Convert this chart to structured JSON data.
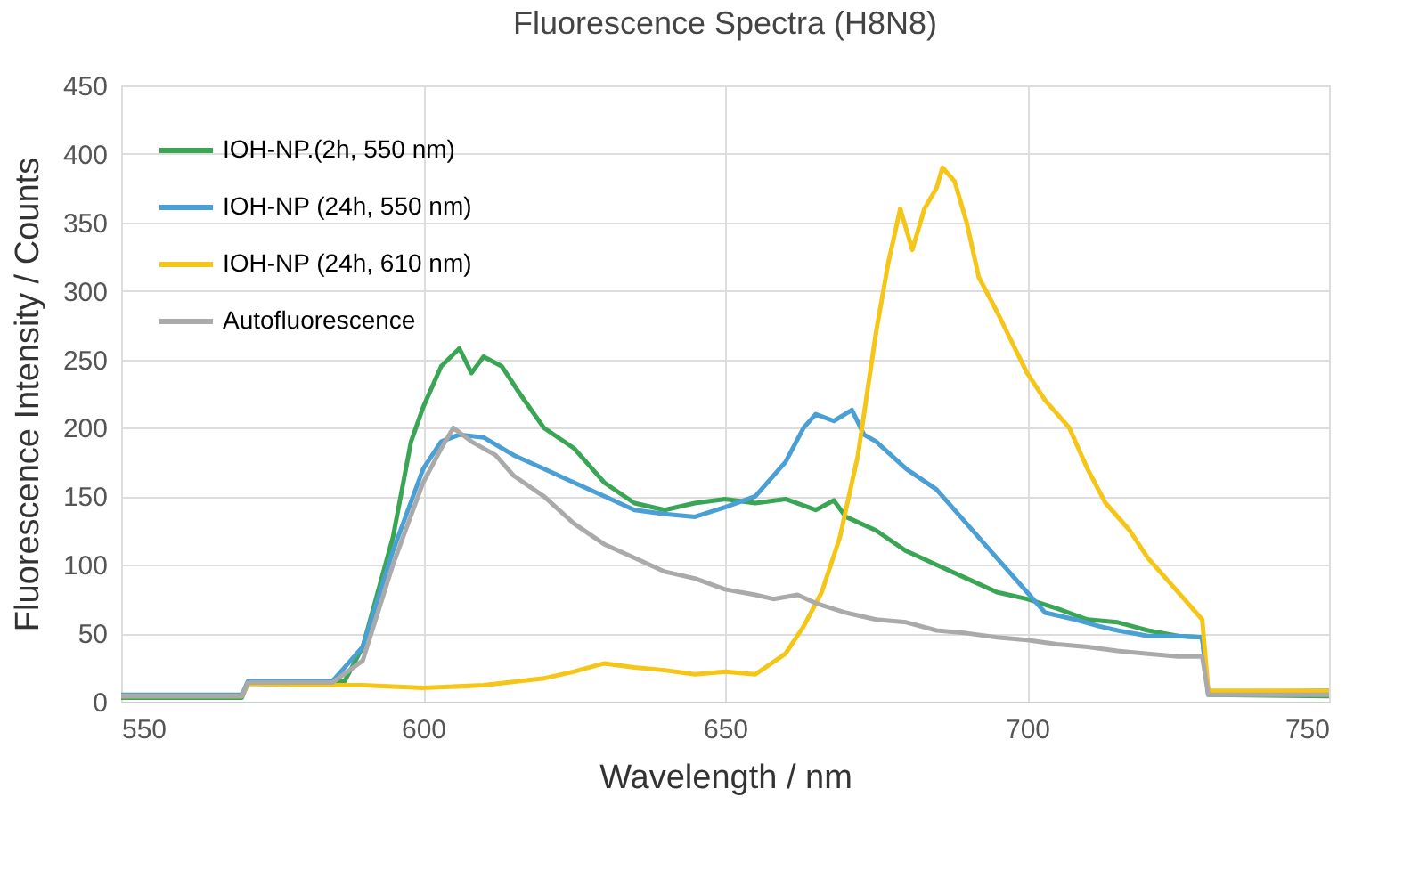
{
  "chart_data": {
    "type": "line",
    "title": "Fluorescence Spectra (H8N8)",
    "xlabel": "Wavelength / nm",
    "ylabel": "Fluorescence Intensity / Counts",
    "xlim": [
      550,
      750
    ],
    "xticks": [
      550,
      600,
      650,
      700,
      750
    ],
    "ylim": [
      0,
      450
    ],
    "yticks": [
      0,
      50,
      100,
      150,
      200,
      250,
      300,
      350,
      400,
      450
    ],
    "grid": true,
    "legend": "top left",
    "marker": "none",
    "line_style": "solid",
    "series": [
      {
        "name": "IOH-NP.(2h, 550 nm)",
        "color": "#3aa655",
        "x": [
          550,
          570,
          571,
          580,
          587,
          590,
          595,
          598,
          600,
          603,
          606,
          608,
          610,
          613,
          616,
          620,
          625,
          630,
          635,
          640,
          645,
          650,
          655,
          660,
          665,
          668,
          670,
          675,
          680,
          685,
          690,
          695,
          700,
          705,
          710,
          715,
          720,
          725,
          729,
          730,
          750
        ],
        "values": [
          3,
          3,
          14,
          12,
          15,
          40,
          120,
          190,
          215,
          245,
          258,
          240,
          252,
          245,
          225,
          200,
          185,
          160,
          145,
          140,
          145,
          148,
          145,
          148,
          140,
          147,
          135,
          125,
          110,
          100,
          90,
          80,
          75,
          68,
          60,
          58,
          52,
          48,
          47,
          5,
          4
        ]
      },
      {
        "name": "IOH-NP (24h, 550 nm)",
        "color": "#4a9fd4",
        "x": [
          550,
          570,
          571,
          585,
          588,
          590,
          595,
          600,
          603,
          606,
          610,
          615,
          620,
          625,
          630,
          635,
          640,
          645,
          650,
          655,
          660,
          663,
          665,
          668,
          671,
          673,
          675,
          680,
          685,
          690,
          695,
          700,
          703,
          708,
          712,
          715,
          720,
          725,
          729,
          730,
          750
        ],
        "values": [
          5,
          5,
          15,
          15,
          30,
          40,
          110,
          170,
          190,
          195,
          193,
          180,
          170,
          160,
          150,
          140,
          137,
          135,
          142,
          150,
          175,
          200,
          210,
          205,
          213,
          195,
          190,
          170,
          155,
          130,
          105,
          80,
          65,
          60,
          55,
          52,
          48,
          48,
          47,
          7,
          8
        ]
      },
      {
        "name": "IOH-NP (24h, 610 nm)",
        "color": "#f5c518",
        "x": [
          550,
          570,
          571,
          580,
          590,
          600,
          610,
          620,
          625,
          630,
          635,
          640,
          645,
          650,
          655,
          660,
          663,
          666,
          669,
          672,
          675,
          677,
          679,
          681,
          683,
          685,
          686,
          688,
          690,
          692,
          695,
          700,
          703,
          707,
          710,
          713,
          717,
          720,
          723,
          726,
          729,
          730,
          750
        ],
        "values": [
          4,
          4,
          13,
          12,
          12,
          10,
          12,
          17,
          22,
          28,
          25,
          23,
          20,
          22,
          20,
          35,
          55,
          80,
          120,
          180,
          270,
          320,
          360,
          330,
          360,
          375,
          390,
          380,
          350,
          310,
          285,
          240,
          220,
          200,
          170,
          145,
          125,
          105,
          90,
          75,
          60,
          8,
          8
        ]
      },
      {
        "name": "Autofluorescence",
        "color": "#aaaaaa",
        "x": [
          550,
          570,
          571,
          585,
          590,
          595,
          600,
          603,
          605,
          608,
          612,
          615,
          620,
          625,
          630,
          635,
          640,
          645,
          650,
          655,
          658,
          662,
          665,
          670,
          675,
          680,
          685,
          690,
          695,
          700,
          705,
          710,
          715,
          720,
          725,
          729,
          730,
          750
        ],
        "values": [
          4,
          4,
          14,
          14,
          30,
          100,
          160,
          185,
          200,
          190,
          180,
          165,
          150,
          130,
          115,
          105,
          95,
          90,
          82,
          78,
          75,
          78,
          72,
          65,
          60,
          58,
          52,
          50,
          47,
          45,
          42,
          40,
          37,
          35,
          33,
          33,
          5,
          5
        ]
      }
    ]
  }
}
